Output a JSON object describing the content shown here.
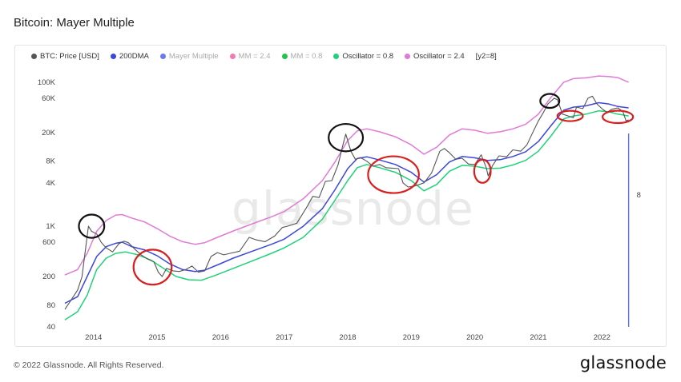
{
  "header": {
    "title": "Bitcoin: Mayer Multiple"
  },
  "footer": {
    "copyright": "© 2022 Glassnode. All Rights Reserved.",
    "brand": "glassnode"
  },
  "watermark": "glassnode",
  "legend": [
    {
      "label": "BTC: Price [USD]",
      "color": "#555555",
      "enabled": true
    },
    {
      "label": "200DMA",
      "color": "#3d47d9",
      "enabled": true
    },
    {
      "label": "Mayer Multiple",
      "color": "#6b79f0",
      "enabled": false
    },
    {
      "label": "MM = 2.4",
      "color": "#f07ab4",
      "enabled": false
    },
    {
      "label": "MM = 0.8",
      "color": "#23c24e",
      "enabled": false
    },
    {
      "label": "Oscillator = 0.8",
      "color": "#1fd27a",
      "enabled": true
    },
    {
      "label": "Oscillator = 2.4",
      "color": "#e17ad6",
      "enabled": true
    },
    {
      "label": "[y2=8]",
      "color": "",
      "enabled": true
    }
  ],
  "chart_data": {
    "type": "line",
    "title": "Bitcoin: Mayer Multiple",
    "y_scale": "log",
    "ylim": [
      40,
      150000
    ],
    "xlim": [
      2013.55,
      2022.45
    ],
    "y_ticks": [
      {
        "value": 40,
        "label": "40"
      },
      {
        "value": 80,
        "label": "80"
      },
      {
        "value": 200,
        "label": "200"
      },
      {
        "value": 600,
        "label": "600"
      },
      {
        "value": 1000,
        "label": "1K"
      },
      {
        "value": 4000,
        "label": "4K"
      },
      {
        "value": 8000,
        "label": "8K"
      },
      {
        "value": 20000,
        "label": "20K"
      },
      {
        "value": 60000,
        "label": "60K"
      },
      {
        "value": 100000,
        "label": "100K"
      }
    ],
    "x_ticks": [
      "2014",
      "2015",
      "2016",
      "2017",
      "2018",
      "2019",
      "2020",
      "2021",
      "2022"
    ],
    "y2_label": "8",
    "marker_x": 2022.42,
    "series": [
      {
        "name": "BTC: Price [USD]",
        "color": "#555555",
        "points": [
          [
            2013.55,
            70
          ],
          [
            2013.65,
            95
          ],
          [
            2013.75,
            130
          ],
          [
            2013.82,
            200
          ],
          [
            2013.87,
            450
          ],
          [
            2013.92,
            1000
          ],
          [
            2013.97,
            850
          ],
          [
            2014.05,
            780
          ],
          [
            2014.12,
            600
          ],
          [
            2014.2,
            500
          ],
          [
            2014.3,
            440
          ],
          [
            2014.4,
            570
          ],
          [
            2014.48,
            620
          ],
          [
            2014.55,
            590
          ],
          [
            2014.65,
            480
          ],
          [
            2014.75,
            400
          ],
          [
            2014.85,
            350
          ],
          [
            2014.95,
            320
          ],
          [
            2015.02,
            230
          ],
          [
            2015.08,
            200
          ],
          [
            2015.15,
            260
          ],
          [
            2015.25,
            240
          ],
          [
            2015.35,
            235
          ],
          [
            2015.45,
            250
          ],
          [
            2015.55,
            280
          ],
          [
            2015.65,
            230
          ],
          [
            2015.75,
            240
          ],
          [
            2015.85,
            380
          ],
          [
            2015.95,
            430
          ],
          [
            2016.05,
            400
          ],
          [
            2016.15,
            420
          ],
          [
            2016.3,
            450
          ],
          [
            2016.45,
            700
          ],
          [
            2016.55,
            650
          ],
          [
            2016.7,
            610
          ],
          [
            2016.85,
            730
          ],
          [
            2016.97,
            960
          ],
          [
            2017.05,
            1000
          ],
          [
            2017.2,
            1100
          ],
          [
            2017.35,
            1800
          ],
          [
            2017.45,
            2600
          ],
          [
            2017.55,
            2500
          ],
          [
            2017.65,
            4200
          ],
          [
            2017.75,
            4300
          ],
          [
            2017.85,
            7200
          ],
          [
            2017.93,
            14000
          ],
          [
            2017.97,
            19000
          ],
          [
            2018.05,
            11000
          ],
          [
            2018.12,
            8500
          ],
          [
            2018.2,
            9000
          ],
          [
            2018.3,
            8000
          ],
          [
            2018.4,
            6800
          ],
          [
            2018.5,
            7200
          ],
          [
            2018.6,
            6500
          ],
          [
            2018.7,
            6400
          ],
          [
            2018.8,
            6300
          ],
          [
            2018.87,
            4000
          ],
          [
            2018.95,
            3500
          ],
          [
            2019.05,
            3600
          ],
          [
            2019.2,
            4000
          ],
          [
            2019.32,
            5500
          ],
          [
            2019.45,
            11000
          ],
          [
            2019.52,
            12000
          ],
          [
            2019.6,
            10500
          ],
          [
            2019.7,
            8500
          ],
          [
            2019.8,
            8800
          ],
          [
            2019.9,
            7300
          ],
          [
            2020.0,
            7200
          ],
          [
            2020.1,
            9800
          ],
          [
            2020.18,
            6500
          ],
          [
            2020.21,
            5000
          ],
          [
            2020.28,
            7000
          ],
          [
            2020.38,
            9500
          ],
          [
            2020.5,
            9200
          ],
          [
            2020.6,
            11500
          ],
          [
            2020.72,
            11000
          ],
          [
            2020.82,
            13500
          ],
          [
            2020.9,
            19000
          ],
          [
            2021.0,
            29000
          ],
          [
            2021.08,
            38000
          ],
          [
            2021.15,
            50000
          ],
          [
            2021.25,
            60000
          ],
          [
            2021.3,
            57000
          ],
          [
            2021.38,
            36000
          ],
          [
            2021.47,
            34000
          ],
          [
            2021.55,
            32000
          ],
          [
            2021.6,
            45000
          ],
          [
            2021.7,
            43000
          ],
          [
            2021.78,
            60000
          ],
          [
            2021.85,
            64000
          ],
          [
            2021.92,
            50000
          ],
          [
            2022.0,
            43000
          ],
          [
            2022.08,
            38000
          ],
          [
            2022.15,
            42000
          ],
          [
            2022.25,
            44000
          ],
          [
            2022.33,
            39000
          ],
          [
            2022.38,
            29000
          ],
          [
            2022.42,
            30000
          ]
        ]
      },
      {
        "name": "200DMA",
        "color": "#3d47d9",
        "points": [
          [
            2013.55,
            85
          ],
          [
            2013.75,
            105
          ],
          [
            2013.9,
            200
          ],
          [
            2014.05,
            380
          ],
          [
            2014.2,
            520
          ],
          [
            2014.35,
            580
          ],
          [
            2014.45,
            600
          ],
          [
            2014.6,
            520
          ],
          [
            2014.8,
            470
          ],
          [
            2015.0,
            390
          ],
          [
            2015.2,
            300
          ],
          [
            2015.4,
            250
          ],
          [
            2015.6,
            235
          ],
          [
            2015.75,
            245
          ],
          [
            2015.95,
            290
          ],
          [
            2016.2,
            360
          ],
          [
            2016.5,
            450
          ],
          [
            2016.8,
            560
          ],
          [
            2017.0,
            660
          ],
          [
            2017.3,
            1000
          ],
          [
            2017.6,
            1750
          ],
          [
            2017.8,
            3200
          ],
          [
            2018.0,
            6300
          ],
          [
            2018.15,
            8700
          ],
          [
            2018.3,
            9200
          ],
          [
            2018.5,
            8300
          ],
          [
            2018.75,
            7200
          ],
          [
            2019.0,
            5600
          ],
          [
            2019.2,
            4100
          ],
          [
            2019.4,
            5200
          ],
          [
            2019.6,
            7800
          ],
          [
            2019.8,
            9300
          ],
          [
            2020.0,
            8900
          ],
          [
            2020.2,
            8200
          ],
          [
            2020.4,
            8400
          ],
          [
            2020.6,
            9300
          ],
          [
            2020.8,
            10800
          ],
          [
            2021.0,
            15000
          ],
          [
            2021.2,
            25000
          ],
          [
            2021.4,
            41000
          ],
          [
            2021.55,
            45000
          ],
          [
            2021.75,
            47000
          ],
          [
            2021.95,
            52000
          ],
          [
            2022.1,
            50000
          ],
          [
            2022.25,
            46000
          ],
          [
            2022.42,
            44000
          ]
        ]
      },
      {
        "name": "Oscillator = 0.8",
        "color": "#1fd27a",
        "points": [
          [
            2013.55,
            50
          ],
          [
            2013.75,
            65
          ],
          [
            2013.9,
            110
          ],
          [
            2014.05,
            250
          ],
          [
            2014.2,
            360
          ],
          [
            2014.35,
            420
          ],
          [
            2014.5,
            440
          ],
          [
            2014.7,
            400
          ],
          [
            2014.9,
            340
          ],
          [
            2015.1,
            260
          ],
          [
            2015.3,
            200
          ],
          [
            2015.5,
            180
          ],
          [
            2015.7,
            178
          ],
          [
            2015.9,
            205
          ],
          [
            2016.2,
            260
          ],
          [
            2016.5,
            330
          ],
          [
            2016.8,
            420
          ],
          [
            2017.0,
            500
          ],
          [
            2017.3,
            700
          ],
          [
            2017.6,
            1250
          ],
          [
            2017.8,
            2300
          ],
          [
            2018.0,
            4300
          ],
          [
            2018.15,
            6500
          ],
          [
            2018.3,
            7200
          ],
          [
            2018.5,
            6500
          ],
          [
            2018.75,
            5600
          ],
          [
            2019.0,
            4300
          ],
          [
            2019.2,
            3100
          ],
          [
            2019.4,
            3800
          ],
          [
            2019.6,
            5800
          ],
          [
            2019.8,
            7000
          ],
          [
            2020.0,
            6800
          ],
          [
            2020.2,
            6300
          ],
          [
            2020.4,
            6400
          ],
          [
            2020.6,
            7100
          ],
          [
            2020.8,
            8200
          ],
          [
            2021.0,
            11000
          ],
          [
            2021.2,
            18000
          ],
          [
            2021.4,
            31000
          ],
          [
            2021.55,
            34000
          ],
          [
            2021.75,
            36000
          ],
          [
            2021.95,
            40000
          ],
          [
            2022.1,
            39000
          ],
          [
            2022.25,
            36000
          ],
          [
            2022.42,
            34000
          ]
        ]
      },
      {
        "name": "Oscillator = 2.4",
        "color": "#e17ad6",
        "points": [
          [
            2013.55,
            210
          ],
          [
            2013.75,
            250
          ],
          [
            2013.9,
            420
          ],
          [
            2014.05,
            850
          ],
          [
            2014.2,
            1200
          ],
          [
            2014.35,
            1430
          ],
          [
            2014.45,
            1450
          ],
          [
            2014.6,
            1300
          ],
          [
            2014.8,
            1150
          ],
          [
            2015.0,
            930
          ],
          [
            2015.2,
            730
          ],
          [
            2015.4,
            610
          ],
          [
            2015.6,
            560
          ],
          [
            2015.75,
            590
          ],
          [
            2015.95,
            700
          ],
          [
            2016.2,
            860
          ],
          [
            2016.5,
            1080
          ],
          [
            2016.8,
            1350
          ],
          [
            2017.0,
            1600
          ],
          [
            2017.3,
            2400
          ],
          [
            2017.6,
            4300
          ],
          [
            2017.8,
            7800
          ],
          [
            2018.0,
            15500
          ],
          [
            2018.15,
            21000
          ],
          [
            2018.3,
            22500
          ],
          [
            2018.5,
            20500
          ],
          [
            2018.75,
            17500
          ],
          [
            2019.0,
            13500
          ],
          [
            2019.2,
            10000
          ],
          [
            2019.4,
            12500
          ],
          [
            2019.6,
            18500
          ],
          [
            2019.8,
            22500
          ],
          [
            2020.0,
            21500
          ],
          [
            2020.2,
            19500
          ],
          [
            2020.4,
            20500
          ],
          [
            2020.6,
            22500
          ],
          [
            2020.8,
            26000
          ],
          [
            2021.0,
            36000
          ],
          [
            2021.2,
            62000
          ],
          [
            2021.4,
            100000
          ],
          [
            2021.55,
            112000
          ],
          [
            2021.75,
            115000
          ],
          [
            2021.95,
            122000
          ],
          [
            2022.1,
            120000
          ],
          [
            2022.25,
            116000
          ],
          [
            2022.42,
            100000
          ]
        ]
      }
    ],
    "annotations": [
      {
        "shape": "ellipse",
        "color": "#111111",
        "x": 2013.97,
        "y": 1000,
        "rx_years": 0.2,
        "ry_factor": 1.45
      },
      {
        "shape": "ellipse",
        "color": "#111111",
        "x": 2017.97,
        "y": 17000,
        "rx_years": 0.27,
        "ry_factor": 1.55
      },
      {
        "shape": "ellipse",
        "color": "#111111",
        "x": 2021.18,
        "y": 55000,
        "rx_years": 0.15,
        "ry_factor": 1.25
      },
      {
        "shape": "ellipse",
        "color": "#d81f1f",
        "x": 2014.93,
        "y": 270,
        "rx_years": 0.3,
        "ry_factor": 1.75
      },
      {
        "shape": "ellipse",
        "color": "#d81f1f",
        "x": 2018.72,
        "y": 5200,
        "rx_years": 0.4,
        "ry_factor": 1.8
      },
      {
        "shape": "ellipse",
        "color": "#d81f1f",
        "x": 2020.12,
        "y": 5800,
        "rx_years": 0.13,
        "ry_factor": 1.45
      },
      {
        "shape": "ellipse",
        "color": "#d81f1f",
        "x": 2021.5,
        "y": 34000,
        "rx_years": 0.2,
        "ry_factor": 1.18
      },
      {
        "shape": "ellipse",
        "color": "#d81f1f",
        "x": 2022.25,
        "y": 33000,
        "rx_years": 0.24,
        "ry_factor": 1.22
      }
    ]
  }
}
